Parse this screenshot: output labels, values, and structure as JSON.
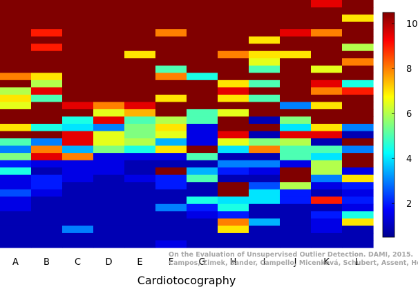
{
  "chart_data": {
    "type": "heatmap",
    "title": "",
    "xlabel": "Cardiotocography",
    "ylabel": "",
    "categories": [
      "A",
      "B",
      "C",
      "D",
      "E",
      "F",
      "G",
      "H",
      "I",
      "J",
      "K",
      "L"
    ],
    "n_rows": 34,
    "colorbar": {
      "min": 0.5,
      "max": 10.5,
      "ticks": [
        2,
        4,
        6,
        8,
        10
      ],
      "colormap": "jet"
    },
    "grid": false,
    "credit_lines": [
      "On the Evaluation of Unsupervised Outlier Detection. DAMI, 2015.",
      "Campos, Zimek, Sander, Campello, Micenková, Schubert, Assent, Houle"
    ],
    "columns": [
      {
        "name": "A",
        "values": [
          10.5,
          10.5,
          10.5,
          10.5,
          10.5,
          10.5,
          10.5,
          10.5,
          10.5,
          10.5,
          8,
          10.5,
          6,
          7,
          6.5,
          10.5,
          10.5,
          7,
          10.5,
          5,
          3,
          5.5,
          2,
          4.5,
          1.5,
          1.5,
          2.5,
          1.5,
          1.5,
          1,
          1,
          1,
          1,
          1
        ]
      },
      {
        "name": "B",
        "values": [
          10.5,
          10.5,
          10.5,
          10.5,
          9,
          10.5,
          9,
          10.5,
          10.5,
          10.5,
          7,
          6,
          9.5,
          5,
          10.5,
          10.5,
          10.5,
          4.5,
          10.5,
          3,
          8,
          9.5,
          1.5,
          1,
          2,
          2,
          1.5,
          1,
          1,
          1,
          1,
          1,
          1,
          1
        ]
      },
      {
        "name": "C",
        "values": [
          10.5,
          10.5,
          10.5,
          10.5,
          10.5,
          10.5,
          10.5,
          10.5,
          10.5,
          10.5,
          10.5,
          10.5,
          10.5,
          10.5,
          9.5,
          10.5,
          4.5,
          4,
          9.5,
          9.5,
          3.5,
          8,
          1.5,
          1.5,
          1.5,
          1,
          1,
          1,
          1,
          1,
          1,
          3,
          1,
          1
        ]
      },
      {
        "name": "D",
        "values": [
          10.5,
          10.5,
          10.5,
          10.5,
          10.5,
          10.5,
          10.5,
          10.5,
          10.5,
          10.5,
          10.5,
          10.5,
          10.5,
          10.5,
          8,
          6.5,
          9.5,
          3,
          6.5,
          6.5,
          5.5,
          1.5,
          1.5,
          1.5,
          1,
          1,
          1,
          1,
          1,
          1,
          1,
          1,
          1,
          1
        ]
      },
      {
        "name": "E",
        "values": [
          10.5,
          10.5,
          10.5,
          10.5,
          10.5,
          10.5,
          10.5,
          7,
          10.5,
          10.5,
          10.5,
          10.5,
          10.5,
          10.5,
          9.5,
          7.5,
          5,
          5.5,
          5.5,
          6,
          4.5,
          1.5,
          1,
          1,
          1.5,
          1,
          1,
          1,
          1,
          1,
          1,
          1,
          1,
          1
        ]
      },
      {
        "name": "F",
        "values": [
          10.5,
          10.5,
          10.5,
          10.5,
          8,
          10.5,
          10.5,
          10.5,
          10.5,
          5,
          8,
          10.5,
          10.5,
          7,
          10.5,
          10.5,
          6,
          7,
          6.5,
          3.5,
          7,
          1.5,
          1,
          10.5,
          2,
          2,
          1,
          1,
          3,
          1,
          1,
          1,
          1,
          1.5
        ]
      },
      {
        "name": "G",
        "values": [
          10.5,
          10.5,
          10.5,
          10.5,
          10.5,
          10.5,
          10.5,
          10.5,
          10.5,
          10.5,
          4.5,
          10.5,
          10.5,
          10.5,
          10.5,
          5,
          5,
          1.5,
          1.5,
          1.5,
          10.5,
          5,
          1,
          3.5,
          5,
          1,
          1,
          4.5,
          2,
          1.5,
          1,
          1,
          1,
          1
        ]
      },
      {
        "name": "H",
        "values": [
          10.5,
          10.5,
          10.5,
          10.5,
          10.5,
          10.5,
          10.5,
          8,
          10.5,
          10.5,
          10.5,
          7,
          9.5,
          7,
          10.5,
          6.5,
          10.5,
          10.5,
          9.5,
          6.5,
          4,
          1,
          3,
          2,
          1,
          10.5,
          10.5,
          4,
          4.5,
          2,
          8,
          7,
          1,
          1
        ]
      },
      {
        "name": "I",
        "values": [
          10.5,
          10.5,
          10.5,
          10.5,
          10.5,
          7,
          10.5,
          7,
          6.5,
          5,
          10.5,
          5,
          10.5,
          5,
          10.5,
          10.5,
          1,
          10.5,
          1,
          5.5,
          8,
          1,
          3,
          1.5,
          1,
          2.5,
          4,
          4,
          1,
          1,
          3.5,
          1,
          1,
          1
        ]
      },
      {
        "name": "J",
        "values": [
          10.5,
          10.5,
          10.5,
          10.5,
          9.5,
          10.5,
          10.5,
          7,
          10.5,
          10.5,
          10.5,
          10.5,
          10.5,
          10.5,
          3,
          10.5,
          5.5,
          4,
          9.5,
          6,
          5,
          5,
          1.5,
          10.5,
          10.5,
          6,
          2,
          2,
          1,
          1,
          1,
          1,
          1,
          1
        ]
      },
      {
        "name": "K",
        "values": [
          9.5,
          10.5,
          10.5,
          10.5,
          8,
          10.5,
          10.5,
          10.5,
          10.5,
          6.5,
          10.5,
          9.5,
          8,
          10.5,
          7,
          10.5,
          10.5,
          7,
          9.5,
          1,
          5,
          4,
          6,
          6,
          3,
          1.5,
          1,
          9,
          1,
          2,
          1.5,
          1.5,
          1,
          1
        ]
      },
      {
        "name": "L",
        "values": [
          10.5,
          10.5,
          7,
          10.5,
          10.5,
          10.5,
          6,
          10.5,
          8,
          10.5,
          10.5,
          4.5,
          9,
          10.5,
          10.5,
          10.5,
          10.5,
          3,
          1,
          10.5,
          3,
          10.5,
          10.5,
          1.5,
          7,
          2,
          1.5,
          2,
          1.5,
          4.5,
          7,
          1,
          1,
          1
        ]
      }
    ]
  }
}
